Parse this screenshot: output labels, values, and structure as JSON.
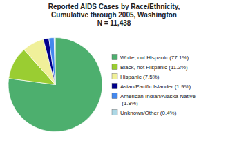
{
  "chart_data": {
    "type": "pie",
    "title": "Reported AIDS Cases by Race/Ethnicity,\nCumulative through 2005, Washington\nN = 11,438",
    "categories": [
      "White, not Hispanic (77.1%)",
      "Black, not Hispanic (11.3%)",
      "Hispanic (7.5%)",
      "Asian/Pacific Islander (1.9%)",
      "American Indian/Alaska Native\n  (1.8%)",
      "Unknown/Other (0.4%)"
    ],
    "values": [
      77.1,
      11.3,
      7.5,
      1.9,
      1.8,
      0.4
    ],
    "colors": [
      "#4daf6e",
      "#9acd32",
      "#f0f09a",
      "#00008b",
      "#4488ee",
      "#add8e6"
    ],
    "legend": "right"
  }
}
